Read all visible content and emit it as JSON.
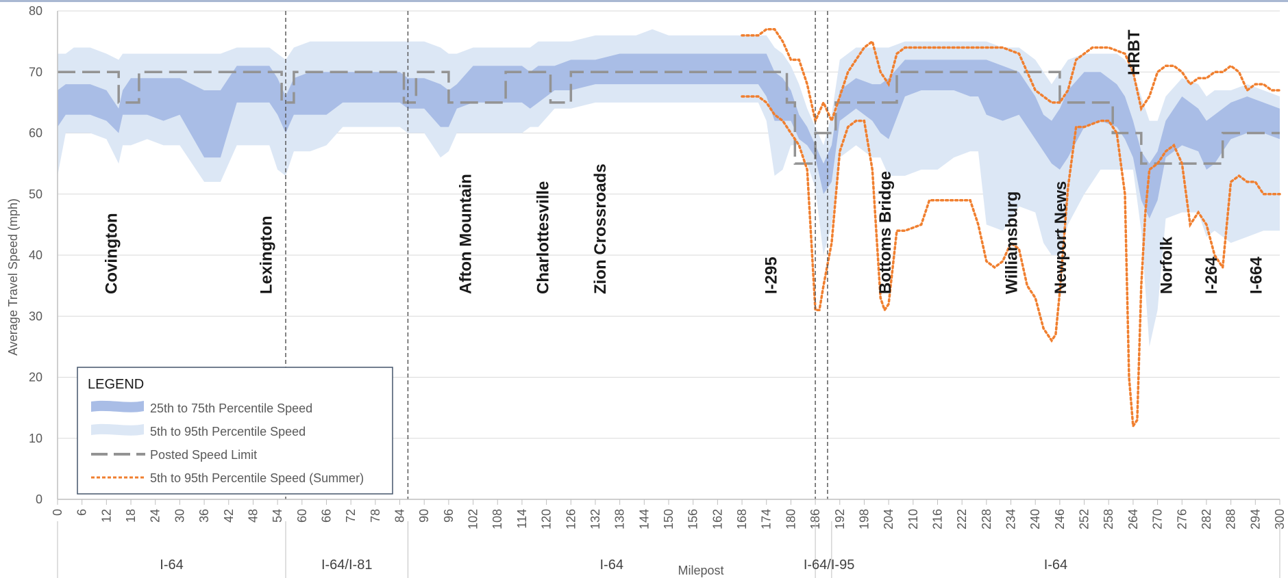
{
  "chart_data": {
    "type": "area",
    "ylabel": "Average Travel Speed (mph)",
    "xlabel": "Milepost",
    "ylim": [
      0,
      80
    ],
    "xlim": [
      0,
      300
    ],
    "yticks": [
      0,
      10,
      20,
      30,
      40,
      50,
      60,
      70,
      80
    ],
    "xticks": [
      0,
      6,
      12,
      18,
      24,
      30,
      36,
      42,
      48,
      54,
      60,
      66,
      72,
      78,
      84,
      90,
      96,
      102,
      108,
      114,
      120,
      126,
      132,
      138,
      144,
      150,
      156,
      162,
      168,
      174,
      180,
      186,
      192,
      198,
      204,
      210,
      216,
      222,
      228,
      234,
      240,
      246,
      252,
      258,
      264,
      270,
      276,
      282,
      288,
      294,
      300
    ],
    "grid": "horizontal",
    "colors": {
      "p25_75": "#a9bde6",
      "p5_95": "#dce7f5",
      "posted": "#939393",
      "summer": "#f07f2f",
      "dividers": "#595959",
      "axis": "#bfbfbf"
    },
    "legend": {
      "title": "LEGEND",
      "position": "bottom-left",
      "entries": [
        "25th to 75th Percentile Speed",
        "5th to 95th Percentile Speed",
        "Posted Speed Limit",
        "5th to 95th Percentile Speed (Summer)"
      ]
    },
    "route_segments": [
      {
        "label": "I-64",
        "from": 0,
        "to": 56
      },
      {
        "label": "I-64/I-81",
        "from": 56,
        "to": 86
      },
      {
        "label": "I-64",
        "from": 86,
        "to": 186
      },
      {
        "label": "I-64/I-95",
        "from": 186,
        "to": 190
      },
      {
        "label": "I-64",
        "from": 190,
        "to": 300
      }
    ],
    "segment_dividers": [
      56,
      86,
      186,
      189
    ],
    "places": [
      {
        "label": "Covington",
        "milepost": 13
      },
      {
        "label": "Lexington",
        "milepost": 51
      },
      {
        "label": "Afton Mountain",
        "milepost": 100
      },
      {
        "label": "Charlottesville",
        "milepost": 119
      },
      {
        "label": "Zion Crossroads",
        "milepost": 133
      },
      {
        "label": "I-295",
        "milepost": 175
      },
      {
        "label": "Bottoms Bridge",
        "milepost": 203
      },
      {
        "label": "Williamsburg",
        "milepost": 234
      },
      {
        "label": "Newport News",
        "milepost": 246
      },
      {
        "label": "HRBT",
        "milepost": 264
      },
      {
        "label": "Norfolk",
        "milepost": 272
      },
      {
        "label": "I-264",
        "milepost": 283
      },
      {
        "label": "I-664",
        "milepost": 294
      }
    ],
    "series": [
      {
        "name": "5th to 95th Percentile Speed",
        "x": [
          0,
          2,
          4,
          8,
          12,
          15,
          16,
          18,
          22,
          26,
          30,
          36,
          40,
          44,
          48,
          52,
          54,
          56,
          58,
          62,
          66,
          70,
          76,
          80,
          84,
          86,
          90,
          94,
          96,
          98,
          102,
          106,
          110,
          114,
          116,
          118,
          122,
          126,
          132,
          138,
          142,
          146,
          150,
          156,
          162,
          168,
          172,
          174,
          176,
          178,
          180,
          182,
          184,
          186,
          188,
          190,
          192,
          196,
          200,
          202,
          204,
          208,
          212,
          216,
          220,
          224,
          226,
          228,
          232,
          236,
          240,
          242,
          244,
          246,
          248,
          252,
          256,
          260,
          262,
          264,
          266,
          268,
          270,
          272,
          276,
          280,
          282,
          284,
          288,
          292,
          296,
          300
        ],
        "high": [
          73,
          73,
          74,
          74,
          73,
          72,
          73,
          73,
          73,
          73,
          73,
          73,
          73,
          74,
          74,
          74,
          73,
          72,
          74,
          75,
          75,
          75,
          75,
          75,
          75,
          75,
          75,
          74,
          73,
          73,
          74,
          74,
          74,
          74,
          74,
          75,
          75,
          75,
          76,
          76,
          76,
          77,
          76,
          76,
          76,
          76,
          76,
          76,
          74,
          73,
          71,
          68,
          64,
          61,
          58,
          63,
          72,
          74,
          74,
          74,
          74,
          75,
          75,
          75,
          75,
          75,
          75,
          75,
          74,
          74,
          72,
          70,
          68,
          70,
          72,
          73,
          73,
          73,
          72,
          70,
          66,
          62,
          62,
          66,
          69,
          68,
          66,
          67,
          67,
          68,
          67,
          66
        ],
        "low": [
          53,
          60,
          60,
          60,
          59,
          55,
          58,
          58,
          59,
          58,
          58,
          52,
          52,
          58,
          58,
          58,
          54,
          53,
          57,
          57,
          58,
          61,
          61,
          61,
          61,
          60,
          60,
          56,
          57,
          60,
          60,
          60,
          60,
          60,
          61,
          61,
          64,
          64,
          65,
          65,
          65,
          65,
          65,
          65,
          65,
          65,
          65,
          62,
          53,
          54,
          58,
          58,
          55,
          51,
          40,
          45,
          56,
          58,
          56,
          56,
          53,
          53,
          54,
          54,
          56,
          57,
          57,
          45,
          44,
          48,
          47,
          42,
          40,
          40,
          45,
          50,
          54,
          54,
          54,
          54,
          44,
          25,
          31,
          46,
          47,
          47,
          43,
          44,
          42,
          43,
          44,
          44
        ]
      },
      {
        "name": "25th to 75th Percentile Speed",
        "x": [
          0,
          2,
          4,
          8,
          12,
          15,
          16,
          18,
          22,
          26,
          30,
          36,
          40,
          44,
          48,
          52,
          54,
          56,
          58,
          62,
          66,
          70,
          76,
          80,
          84,
          86,
          90,
          94,
          96,
          98,
          102,
          106,
          110,
          114,
          116,
          118,
          122,
          126,
          132,
          138,
          142,
          146,
          150,
          156,
          162,
          168,
          172,
          174,
          176,
          178,
          180,
          182,
          184,
          186,
          188,
          190,
          192,
          196,
          200,
          202,
          204,
          208,
          212,
          216,
          220,
          224,
          226,
          228,
          232,
          236,
          240,
          242,
          244,
          246,
          248,
          252,
          256,
          260,
          262,
          264,
          266,
          268,
          270,
          272,
          276,
          280,
          282,
          284,
          288,
          292,
          296,
          300
        ],
        "high": [
          67,
          68,
          68,
          68,
          67,
          64,
          67,
          69,
          69,
          69,
          69,
          67,
          67,
          71,
          71,
          71,
          69,
          66,
          69,
          70,
          70,
          70,
          70,
          70,
          70,
          69,
          69,
          68,
          67,
          68,
          71,
          71,
          71,
          71,
          70,
          71,
          71,
          72,
          72,
          73,
          73,
          73,
          73,
          73,
          73,
          73,
          73,
          73,
          70,
          69,
          67,
          63,
          61,
          58,
          55,
          58,
          67,
          69,
          68,
          68,
          69,
          72,
          72,
          72,
          72,
          72,
          72,
          72,
          71,
          70,
          66,
          63,
          62,
          64,
          67,
          70,
          70,
          68,
          66,
          62,
          57,
          55,
          57,
          62,
          66,
          64,
          62,
          63,
          65,
          66,
          65,
          64
        ],
        "low": [
          61,
          63,
          63,
          63,
          62,
          60,
          63,
          63,
          63,
          62,
          63,
          56,
          56,
          65,
          65,
          65,
          63,
          60,
          63,
          63,
          63,
          65,
          65,
          65,
          65,
          64,
          64,
          61,
          61,
          64,
          65,
          65,
          65,
          65,
          64,
          65,
          67,
          67,
          68,
          68,
          68,
          68,
          68,
          68,
          68,
          68,
          68,
          66,
          62,
          62,
          62,
          59,
          58,
          56,
          50,
          52,
          62,
          64,
          62,
          60,
          59,
          66,
          67,
          67,
          67,
          66,
          66,
          63,
          62,
          63,
          59,
          57,
          55,
          54,
          56,
          61,
          62,
          61,
          59,
          56,
          49,
          46,
          49,
          56,
          58,
          57,
          54,
          55,
          59,
          60,
          60,
          59
        ]
      },
      {
        "name": "Posted Speed Limit",
        "x": [
          0,
          15,
          15,
          20,
          20,
          55,
          55,
          58,
          58,
          85,
          85,
          88,
          88,
          96,
          96,
          110,
          110,
          121,
          121,
          126,
          126,
          179,
          179,
          181,
          181,
          186,
          186,
          191,
          191,
          206,
          206,
          232,
          232,
          246,
          246,
          259,
          259,
          266,
          266,
          286,
          286,
          300
        ],
        "y": [
          70,
          70,
          65,
          65,
          70,
          70,
          65,
          65,
          70,
          70,
          65,
          65,
          70,
          70,
          65,
          65,
          70,
          70,
          65,
          65,
          70,
          70,
          65,
          65,
          55,
          55,
          60,
          60,
          65,
          65,
          70,
          70,
          70,
          70,
          65,
          65,
          60,
          60,
          55,
          55,
          60,
          60
        ]
      },
      {
        "name": "5th to 95th Percentile Speed (Summer) - high",
        "x": [
          168,
          172,
          174,
          176,
          178,
          180,
          182,
          184,
          186,
          188,
          190,
          192,
          194,
          196,
          198,
          200,
          202,
          204,
          206,
          208,
          212,
          216,
          220,
          224,
          228,
          232,
          236,
          240,
          242,
          244,
          246,
          248,
          250,
          254,
          258,
          262,
          264,
          266,
          268,
          270,
          272,
          274,
          276,
          278,
          280,
          282,
          284,
          286,
          288,
          290,
          292,
          294,
          296,
          298,
          300
        ],
        "y": [
          76,
          76,
          77,
          77,
          75,
          72,
          72,
          68,
          62,
          65,
          62,
          66,
          70,
          72,
          74,
          75,
          70,
          68,
          73,
          74,
          74,
          74,
          74,
          74,
          74,
          74,
          73,
          67,
          66,
          65,
          65,
          67,
          72,
          74,
          74,
          73,
          70,
          64,
          66,
          70,
          71,
          71,
          70,
          68,
          69,
          69,
          70,
          70,
          71,
          70,
          67,
          68,
          68,
          67,
          67
        ]
      },
      {
        "name": "5th to 95th Percentile Speed (Summer) - low",
        "x": [
          168,
          172,
          174,
          176,
          178,
          180,
          182,
          184,
          186,
          187,
          188,
          190,
          192,
          194,
          196,
          198,
          200,
          202,
          203,
          204,
          206,
          208,
          212,
          214,
          216,
          220,
          224,
          226,
          228,
          230,
          232,
          234,
          236,
          238,
          240,
          242,
          244,
          245,
          246,
          248,
          250,
          252,
          256,
          258,
          260,
          262,
          263,
          264,
          265,
          266,
          267,
          268,
          270,
          272,
          274,
          276,
          278,
          280,
          282,
          284,
          286,
          288,
          290,
          292,
          294,
          296,
          298,
          300
        ],
        "y": [
          66,
          66,
          65,
          63,
          62,
          60,
          58,
          54,
          31,
          31,
          35,
          42,
          57,
          61,
          62,
          62,
          54,
          33,
          31,
          32,
          44,
          44,
          45,
          49,
          49,
          49,
          49,
          45,
          39,
          38,
          39,
          42,
          41,
          35,
          33,
          28,
          26,
          27,
          34,
          51,
          61,
          61,
          62,
          62,
          60,
          50,
          20,
          12,
          13,
          35,
          47,
          54,
          55,
          57,
          58,
          55,
          45,
          47,
          45,
          40,
          38,
          52,
          53,
          52,
          52,
          50,
          50,
          50
        ]
      }
    ]
  }
}
